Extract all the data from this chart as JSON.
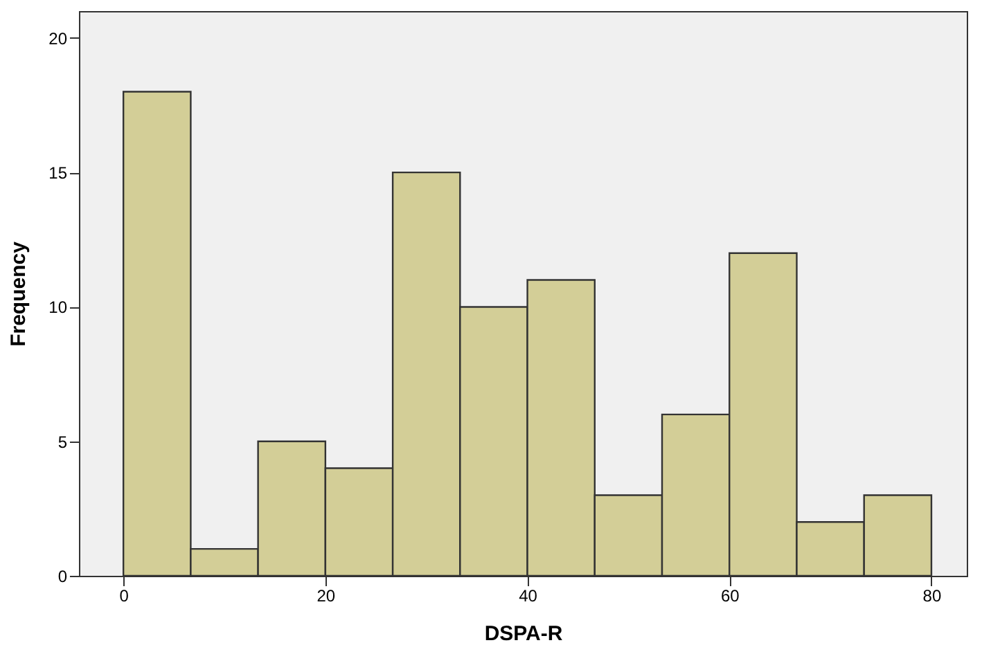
{
  "chart_data": {
    "type": "histogram",
    "xlabel": "DSPA-R",
    "ylabel": "Frequency",
    "bins": [
      0,
      6.667,
      13.333,
      20,
      26.667,
      33.333,
      40,
      46.667,
      53.333,
      60,
      66.667,
      73.333,
      80
    ],
    "values": [
      18,
      1,
      5,
      4,
      15,
      10,
      11,
      3,
      6,
      12,
      2,
      3
    ],
    "color": "#d3ce97",
    "xlim": [
      -4.4,
      83.5
    ],
    "ylim": [
      0,
      21
    ],
    "xticks": [
      0,
      20,
      40,
      60,
      80
    ],
    "yticks": [
      0,
      5,
      10,
      15,
      20
    ],
    "grid": false
  }
}
